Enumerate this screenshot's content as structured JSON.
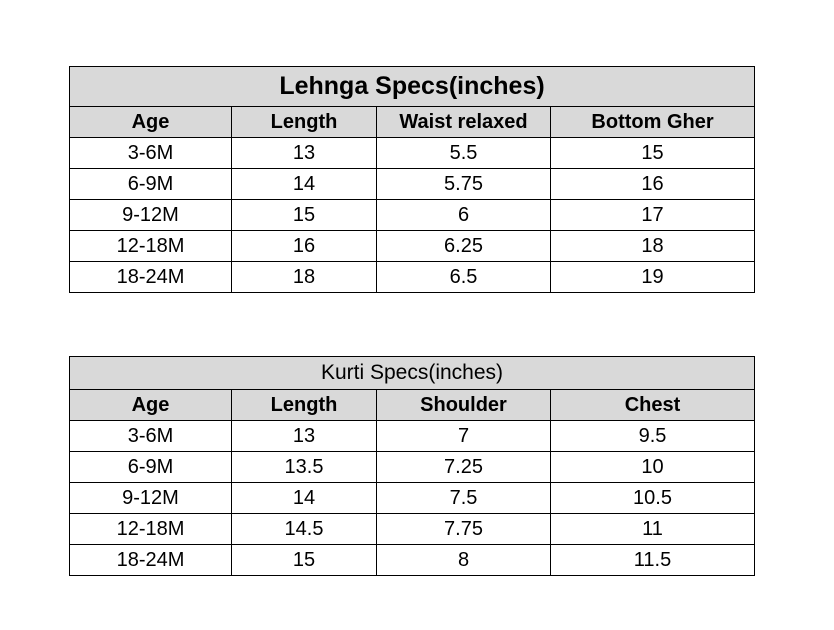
{
  "tables": [
    {
      "title": "Lehnga Specs(inches)",
      "headers": [
        "Age",
        "Length",
        "Waist relaxed",
        "Bottom Gher"
      ],
      "rows": [
        [
          "3-6M",
          "13",
          "5.5",
          "15"
        ],
        [
          "6-9M",
          "14",
          "5.75",
          "16"
        ],
        [
          "9-12M",
          "15",
          "6",
          "17"
        ],
        [
          "12-18M",
          "16",
          "6.25",
          "18"
        ],
        [
          "18-24M",
          "18",
          "6.5",
          "19"
        ]
      ]
    },
    {
      "title": "Kurti Specs(inches)",
      "headers": [
        "Age",
        "Length",
        "Shoulder",
        "Chest"
      ],
      "rows": [
        [
          "3-6M",
          "13",
          "7",
          "9.5"
        ],
        [
          "6-9M",
          "13.5",
          "7.25",
          "10"
        ],
        [
          "9-12M",
          "14",
          "7.5",
          "10.5"
        ],
        [
          "12-18M",
          "14.5",
          "7.75",
          "11"
        ],
        [
          "18-24M",
          "15",
          "8",
          "11.5"
        ]
      ]
    }
  ]
}
